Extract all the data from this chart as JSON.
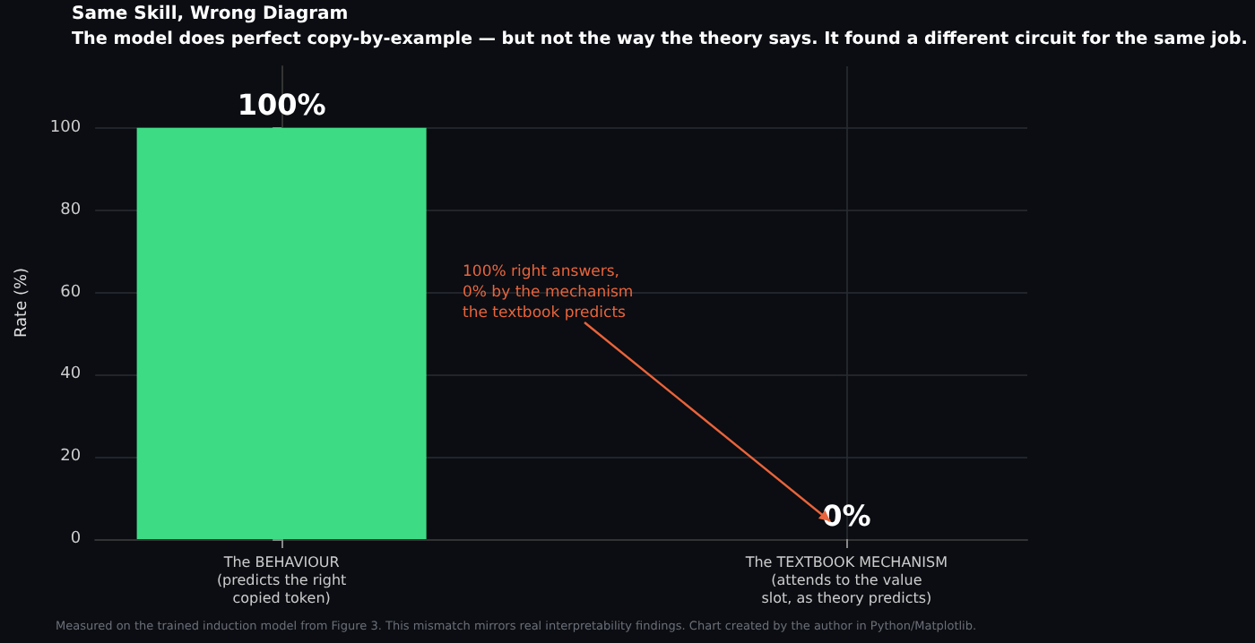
{
  "chart_data": {
    "type": "bar",
    "title": "Same Skill, Wrong Diagram",
    "subtitle": "The model does perfect copy-by-example — but not the way the theory says. It found a different circuit for the same job.",
    "ylabel": "Rate (%)",
    "categories": [
      "The BEHAVIOUR\n(predicts the right\ncopied token)",
      "The TEXTBOOK MECHANISM\n(attends to the value\nslot, as theory predicts)"
    ],
    "values": [
      100,
      0
    ],
    "value_labels": [
      "100%",
      "0%"
    ],
    "color": "#3ddc84",
    "ylim": [
      0,
      115
    ],
    "yticks": [
      0,
      20,
      40,
      60,
      80,
      100
    ],
    "grid": true,
    "annotations": [
      "100% right answers,\n0% by the mechanism\nthe textbook predicts",
      "Measured on the trained induction model from Figure 3. This mismatch mirrors real interpretability findings. Chart created by the author in Python/Matplotlib."
    ]
  }
}
